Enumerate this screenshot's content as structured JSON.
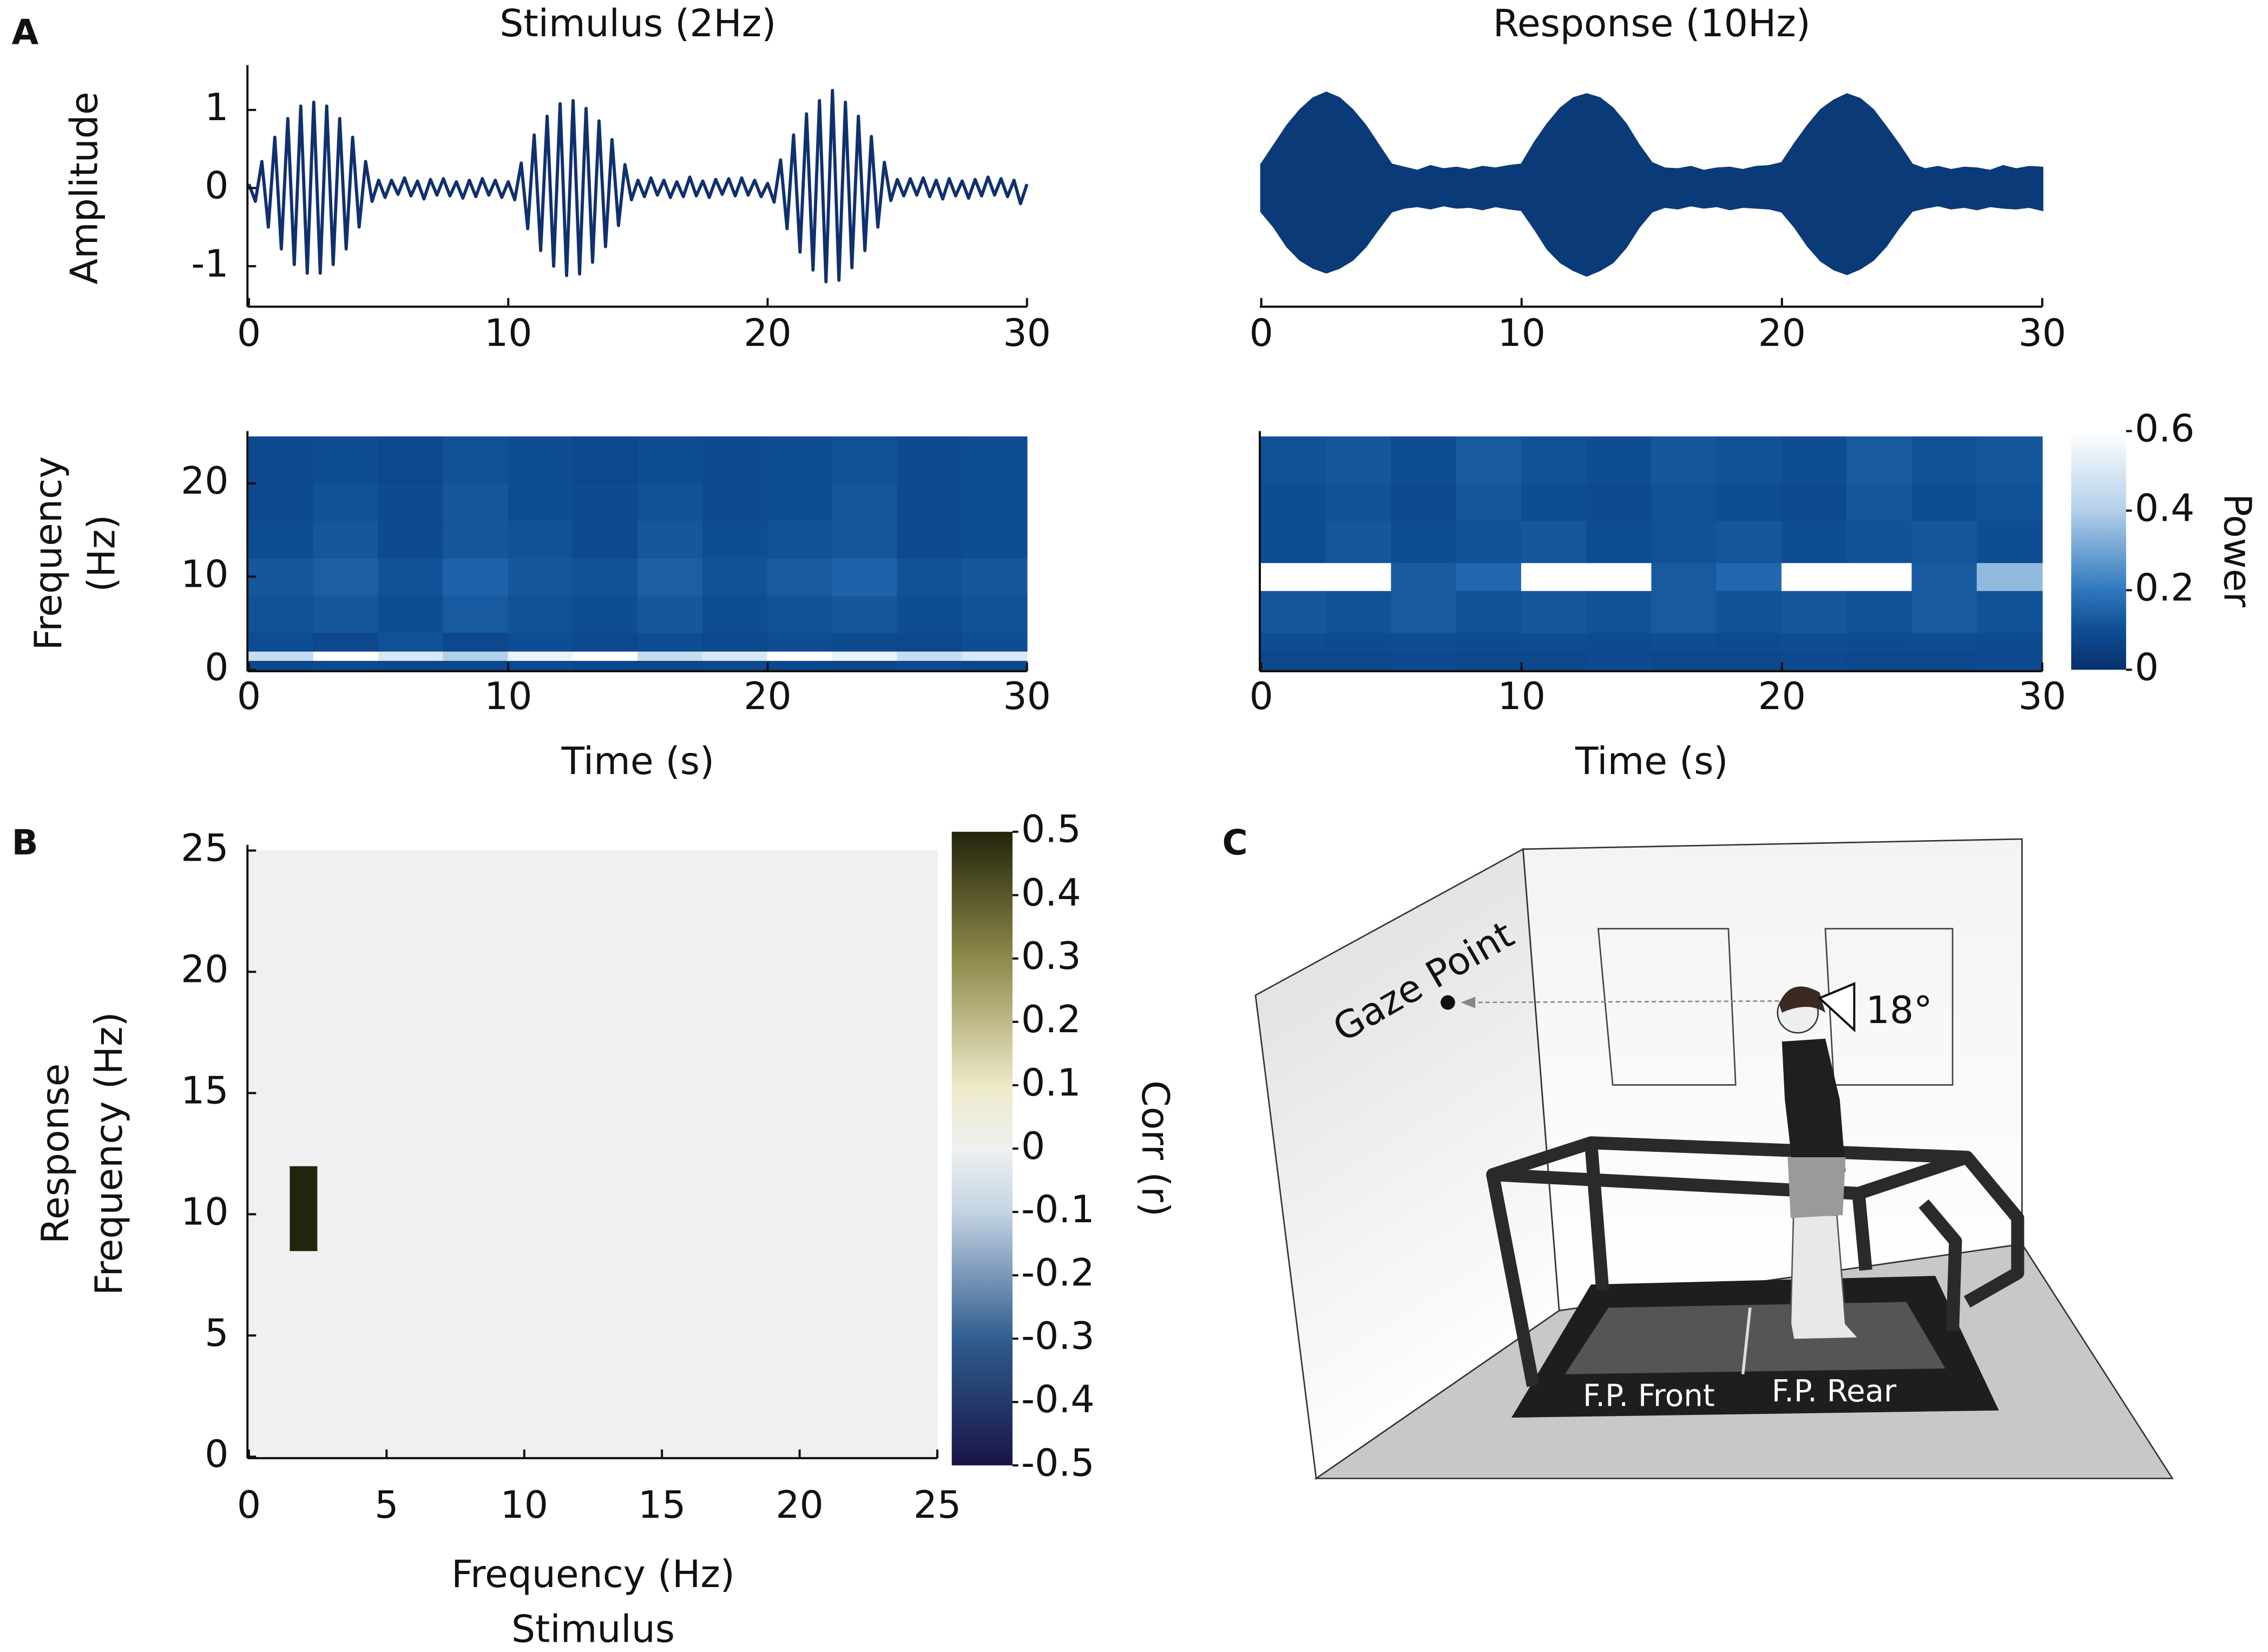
{
  "panel_labels": [
    "A",
    "B",
    "C"
  ],
  "chart_data": [
    {
      "type": "line",
      "title": "Stimulus (2Hz)",
      "ylabel": "Amplitude",
      "color": "#10306f",
      "x": [
        0,
        0.25,
        0.5,
        0.75,
        1,
        1.25,
        1.5,
        1.75,
        2,
        2.25,
        2.5,
        2.75,
        3,
        3.25,
        3.5,
        3.75,
        4,
        4.25,
        4.5,
        4.75,
        5,
        5.25,
        5.5,
        5.75,
        6,
        6.25,
        6.5,
        6.75,
        7,
        7.25,
        7.5,
        7.75,
        8,
        8.25,
        8.5,
        8.75,
        9,
        9.25,
        9.5,
        9.75,
        10,
        10.25,
        10.5,
        10.75,
        11,
        11.25,
        11.5,
        11.75,
        12,
        12.25,
        12.5,
        12.75,
        13,
        13.25,
        13.5,
        13.75,
        14,
        14.25,
        14.5,
        14.75,
        15,
        15.25,
        15.5,
        15.75,
        16,
        16.25,
        16.5,
        16.75,
        17,
        17.25,
        17.5,
        17.75,
        18,
        18.25,
        18.5,
        18.75,
        19,
        19.25,
        19.5,
        19.75,
        20,
        20.25,
        20.5,
        20.75,
        21,
        21.25,
        21.5,
        21.75,
        22,
        22.25,
        22.5,
        22.75,
        23,
        23.25,
        23.5,
        23.75,
        24,
        24.25,
        24.5,
        24.75,
        25,
        25.25,
        25.5,
        25.75,
        26,
        26.25,
        26.5,
        26.75,
        27,
        27.25,
        27.5,
        27.75,
        28,
        28.25,
        28.5,
        28.75,
        29,
        29.25,
        29.5,
        29.75,
        30
      ],
      "values": [
        0.05,
        -0.17,
        0.34,
        -0.5,
        0.65,
        -0.78,
        0.89,
        -0.98,
        1.05,
        -1.09,
        1.1,
        -1.09,
        1.05,
        -0.98,
        0.89,
        -0.78,
        0.65,
        -0.5,
        0.34,
        -0.17,
        0.1,
        -0.12,
        0.1,
        -0.08,
        0.13,
        -0.1,
        0.09,
        -0.14,
        0.11,
        -0.09,
        0.12,
        -0.1,
        0.08,
        -0.13,
        0.1,
        -0.11,
        0.12,
        -0.09,
        0.1,
        -0.12,
        0.08,
        -0.15,
        0.32,
        -0.52,
        0.68,
        -0.8,
        0.92,
        -1.0,
        1.08,
        -1.12,
        1.12,
        -1.1,
        1.02,
        -0.95,
        0.86,
        -0.75,
        0.62,
        -0.48,
        0.3,
        -0.15,
        0.1,
        -0.11,
        0.13,
        -0.09,
        0.1,
        -0.12,
        0.08,
        -0.11,
        0.14,
        -0.1,
        0.09,
        -0.12,
        0.11,
        -0.08,
        0.12,
        -0.1,
        0.13,
        -0.09,
        0.1,
        -0.11,
        0.06,
        -0.18,
        0.36,
        -0.52,
        0.68,
        -0.82,
        0.95,
        -1.05,
        1.12,
        -1.2,
        1.25,
        -1.18,
        1.1,
        -1.02,
        0.92,
        -0.8,
        0.66,
        -0.5,
        0.33,
        -0.16,
        0.11,
        -0.1,
        0.12,
        -0.09,
        0.13,
        -0.11,
        0.1,
        -0.14,
        0.12,
        -0.1,
        0.09,
        -0.13,
        0.11,
        -0.1,
        0.14,
        -0.09,
        0.12,
        -0.11,
        0.1,
        -0.2,
        0.05
      ],
      "xlim": [
        0,
        30
      ],
      "xticks": [
        0,
        10,
        20,
        30
      ],
      "ylim": [
        -1.5,
        1.5
      ],
      "yticks": [
        -1,
        0,
        1
      ]
    },
    {
      "type": "band",
      "title": "Response (10Hz)",
      "color": "#0b3a78",
      "x": [
        0,
        0.5,
        1,
        1.5,
        2,
        2.5,
        3,
        3.5,
        4,
        4.5,
        5,
        5.5,
        6,
        6.5,
        7,
        7.5,
        8,
        8.5,
        9,
        9.5,
        10,
        10.5,
        11,
        11.5,
        12,
        12.5,
        13,
        13.5,
        14,
        14.5,
        15,
        15.5,
        16,
        16.5,
        17,
        17.5,
        18,
        18.5,
        19,
        19.5,
        20,
        20.5,
        21,
        21.5,
        22,
        22.5,
        23,
        23.5,
        24,
        24.5,
        25,
        25.5,
        26,
        26.5,
        27,
        27.5,
        28,
        28.5,
        29,
        29.5,
        30
      ],
      "upper": [
        0.3,
        0.55,
        0.8,
        1.0,
        1.15,
        1.22,
        1.15,
        1.0,
        0.8,
        0.55,
        0.3,
        0.26,
        0.22,
        0.28,
        0.24,
        0.26,
        0.23,
        0.27,
        0.25,
        0.28,
        0.3,
        0.58,
        0.82,
        1.02,
        1.15,
        1.2,
        1.15,
        1.02,
        0.82,
        0.55,
        0.32,
        0.25,
        0.24,
        0.27,
        0.22,
        0.25,
        0.26,
        0.23,
        0.27,
        0.28,
        0.32,
        0.57,
        0.8,
        1.0,
        1.12,
        1.2,
        1.14,
        1.0,
        0.78,
        0.55,
        0.3,
        0.24,
        0.27,
        0.23,
        0.26,
        0.25,
        0.22,
        0.28,
        0.24,
        0.27,
        0.26
      ],
      "lower": [
        -0.3,
        -0.5,
        -0.75,
        -0.92,
        -1.02,
        -1.08,
        -1.02,
        -0.92,
        -0.75,
        -0.52,
        -0.3,
        -0.25,
        -0.23,
        -0.26,
        -0.22,
        -0.25,
        -0.24,
        -0.27,
        -0.23,
        -0.26,
        -0.28,
        -0.52,
        -0.78,
        -0.95,
        -1.05,
        -1.12,
        -1.05,
        -0.95,
        -0.76,
        -0.5,
        -0.3,
        -0.24,
        -0.26,
        -0.22,
        -0.25,
        -0.23,
        -0.27,
        -0.24,
        -0.25,
        -0.26,
        -0.3,
        -0.5,
        -0.74,
        -0.93,
        -1.04,
        -1.1,
        -1.03,
        -0.92,
        -0.74,
        -0.5,
        -0.29,
        -0.25,
        -0.22,
        -0.26,
        -0.24,
        -0.27,
        -0.23,
        -0.25,
        -0.26,
        -0.24,
        -0.28
      ],
      "xlim": [
        0,
        30
      ],
      "xticks": [
        0,
        10,
        20,
        30
      ],
      "ylim": [
        -1.5,
        1.5
      ]
    },
    {
      "type": "heatmap",
      "ylabel": [
        "Frequency",
        "(Hz)"
      ],
      "xlabel": "Time (s)",
      "xbins": [
        0,
        2.5,
        5,
        7.5,
        10,
        12.5,
        15,
        17.5,
        20,
        22.5,
        25,
        27.5,
        30
      ],
      "ybins": [
        0,
        1,
        2,
        4,
        8,
        12,
        16,
        20,
        25
      ],
      "z": [
        [
          0.08,
          0.09,
          0.08,
          0.08,
          0.09,
          0.08,
          0.08,
          0.09,
          0.08,
          0.08,
          0.09,
          0.08
        ],
        [
          0.45,
          0.6,
          0.5,
          0.4,
          0.55,
          0.6,
          0.45,
          0.5,
          0.6,
          0.55,
          0.45,
          0.5
        ],
        [
          0.1,
          0.08,
          0.11,
          0.08,
          0.1,
          0.08,
          0.1,
          0.08,
          0.1,
          0.09,
          0.08,
          0.1
        ],
        [
          0.11,
          0.12,
          0.1,
          0.13,
          0.11,
          0.1,
          0.12,
          0.1,
          0.11,
          0.12,
          0.1,
          0.11
        ],
        [
          0.12,
          0.14,
          0.11,
          0.15,
          0.12,
          0.11,
          0.14,
          0.11,
          0.13,
          0.15,
          0.11,
          0.12
        ],
        [
          0.1,
          0.12,
          0.09,
          0.12,
          0.11,
          0.09,
          0.12,
          0.1,
          0.11,
          0.12,
          0.09,
          0.1
        ],
        [
          0.09,
          0.11,
          0.09,
          0.12,
          0.1,
          0.09,
          0.11,
          0.09,
          0.1,
          0.12,
          0.09,
          0.1
        ],
        [
          0.09,
          0.1,
          0.08,
          0.11,
          0.1,
          0.08,
          0.1,
          0.09,
          0.1,
          0.11,
          0.09,
          0.1
        ]
      ],
      "zlim": [
        0,
        0.6
      ],
      "colorscale": [
        [
          0,
          "#08306b"
        ],
        [
          0.1,
          "#0e4d94"
        ],
        [
          0.2,
          "#2f78bd"
        ],
        [
          0.4,
          "#b3d0ea"
        ],
        [
          0.6,
          "#ffffff"
        ]
      ],
      "xlim": [
        0,
        30
      ],
      "xticks": [
        0,
        10,
        20,
        30
      ],
      "ylim": [
        0,
        25
      ],
      "yticks": [
        0,
        10,
        20
      ]
    },
    {
      "type": "heatmap",
      "xlabel": "Time (s)",
      "xbins": [
        0,
        2.5,
        5,
        7.5,
        10,
        12.5,
        15,
        17.5,
        20,
        22.5,
        25,
        27.5,
        30
      ],
      "ybins": [
        0,
        2,
        4,
        8.5,
        11.5,
        16,
        20,
        25
      ],
      "z": [
        [
          0.08,
          0.08,
          0.09,
          0.08,
          0.08,
          0.09,
          0.08,
          0.08,
          0.09,
          0.08,
          0.08,
          0.09
        ],
        [
          0.1,
          0.09,
          0.1,
          0.09,
          0.1,
          0.09,
          0.1,
          0.09,
          0.1,
          0.09,
          0.1,
          0.09
        ],
        [
          0.12,
          0.11,
          0.13,
          0.11,
          0.12,
          0.11,
          0.13,
          0.11,
          0.12,
          0.11,
          0.13,
          0.11
        ],
        [
          0.6,
          0.6,
          0.13,
          0.16,
          0.6,
          0.6,
          0.13,
          0.16,
          0.6,
          0.6,
          0.13,
          0.35
        ],
        [
          0.1,
          0.12,
          0.1,
          0.11,
          0.12,
          0.1,
          0.11,
          0.12,
          0.1,
          0.11,
          0.12,
          0.1
        ],
        [
          0.1,
          0.11,
          0.09,
          0.12,
          0.1,
          0.09,
          0.11,
          0.1,
          0.09,
          0.12,
          0.1,
          0.11
        ],
        [
          0.11,
          0.12,
          0.1,
          0.13,
          0.11,
          0.1,
          0.12,
          0.11,
          0.1,
          0.13,
          0.11,
          0.12
        ]
      ],
      "zlim": [
        0,
        0.6
      ],
      "colorscale": [
        [
          0,
          "#08306b"
        ],
        [
          0.1,
          "#0e4d94"
        ],
        [
          0.2,
          "#2f78bd"
        ],
        [
          0.4,
          "#b3d0ea"
        ],
        [
          0.6,
          "#ffffff"
        ]
      ],
      "colorbar": {
        "label": "Power",
        "ticks": [
          0,
          0.2,
          0.4,
          0.6
        ]
      },
      "xlim": [
        0,
        30
      ],
      "xticks": [
        0,
        10,
        20,
        30
      ],
      "ylim": [
        0,
        25
      ]
    },
    {
      "type": "heatmap",
      "xlabel": [
        "Frequency (Hz)",
        "Stimulus"
      ],
      "ylabel": [
        "Response",
        "Frequency (Hz)"
      ],
      "xbins": [
        0,
        1.5,
        2.5,
        25
      ],
      "ybins": [
        0,
        8.5,
        12,
        25
      ],
      "z": [
        [
          0,
          0,
          0
        ],
        [
          0,
          0.5,
          0
        ],
        [
          0,
          0,
          0
        ]
      ],
      "zlim": [
        -0.5,
        0.5
      ],
      "colorscale": [
        [
          -0.5,
          "#1a1446"
        ],
        [
          -0.3,
          "#2f5d8f"
        ],
        [
          -0.1,
          "#c4d3e3"
        ],
        [
          0,
          "#eef1f0"
        ],
        [
          0.1,
          "#ede9c8"
        ],
        [
          0.3,
          "#8e8a4a"
        ],
        [
          0.5,
          "#22240c"
        ]
      ],
      "colorbar": {
        "label": "Corr (r)",
        "ticks": [
          -0.5,
          -0.4,
          -0.3,
          -0.2,
          -0.1,
          0,
          0.1,
          0.2,
          0.3,
          0.4,
          0.5
        ]
      },
      "xlim": [
        0,
        25
      ],
      "xticks": [
        0,
        5,
        10,
        15,
        20,
        25
      ],
      "ylim": [
        0,
        25
      ],
      "yticks": [
        0,
        5,
        10,
        15,
        20,
        25
      ]
    }
  ],
  "diagram": {
    "gaze_label": "Gaze Point",
    "angle_label": "18°",
    "plate_labels": [
      "F.P. Front",
      "F.P. Rear"
    ]
  }
}
